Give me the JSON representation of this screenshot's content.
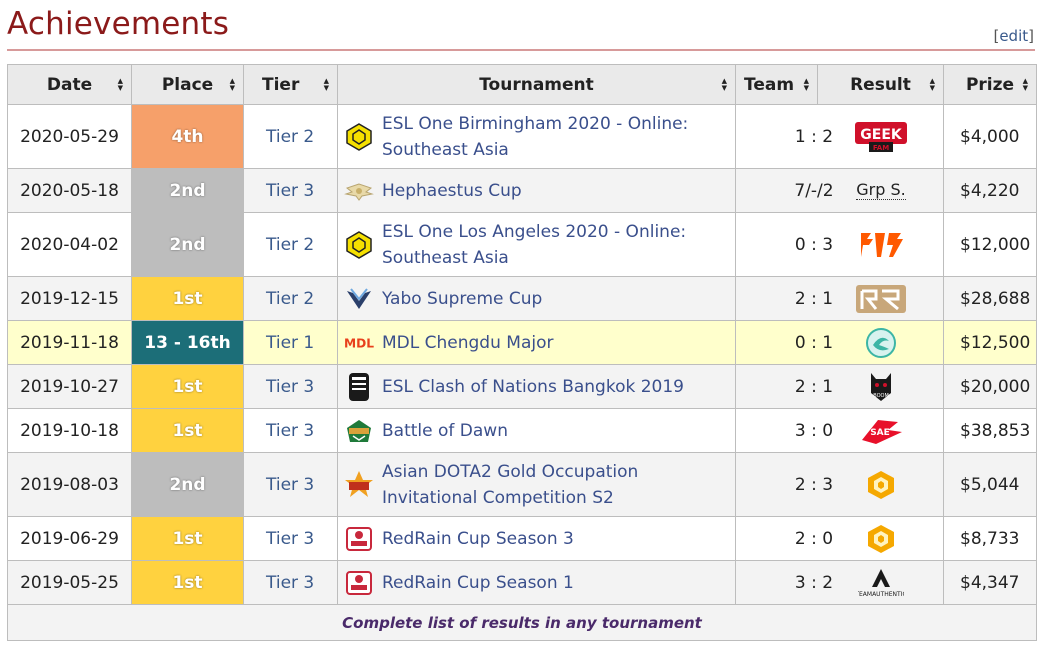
{
  "title": "Achievements",
  "edit_label": "edit",
  "headers": {
    "date": "Date",
    "place": "Place",
    "tier": "Tier",
    "tournament": "Tournament",
    "team": "Team",
    "result": "Result",
    "prize": "Prize"
  },
  "rows": [
    {
      "date": "2020-05-29",
      "place": "4th",
      "place_class": "p4",
      "tier": "Tier 2",
      "tournament": "ESL One Birmingham 2020 - Online: Southeast Asia",
      "t_icon": "esl-hexagon-icon",
      "score": "1 : 2",
      "team_icon": "geek-fam-logo",
      "prize": "$4,000"
    },
    {
      "date": "2020-05-18",
      "place": "2nd",
      "place_class": "p2",
      "tier": "Tier 3",
      "tournament": "Hephaestus Cup",
      "t_icon": "hephaestus-wings-icon",
      "score": "7/-/2",
      "team_text": "Grp S.",
      "prize": "$4,220"
    },
    {
      "date": "2020-04-02",
      "place": "2nd",
      "place_class": "p2",
      "tier": "Tier 2",
      "tournament": "ESL One Los Angeles 2020 - Online: Southeast Asia",
      "t_icon": "esl-hexagon-icon",
      "score": "0 : 3",
      "team_icon": "fnatic-logo",
      "prize": "$12,000"
    },
    {
      "date": "2019-12-15",
      "place": "1st",
      "place_class": "p1",
      "tier": "Tier 2",
      "tournament": "Yabo Supreme Cup",
      "t_icon": "yabo-wings-icon",
      "score": "2 : 1",
      "team_icon": "rng-logo",
      "prize": "$28,688"
    },
    {
      "date": "2019-11-18",
      "place": "13 - 16th",
      "place_class": "p13",
      "tier": "Tier 1",
      "tournament": "MDL Chengdu Major",
      "t_icon": "mdl-icon",
      "score": "0 : 1",
      "team_icon": "team-aster-logo",
      "prize": "$12,500",
      "highlight": true
    },
    {
      "date": "2019-10-27",
      "place": "1st",
      "place_class": "p1",
      "tier": "Tier 3",
      "tournament": "ESL Clash of Nations Bangkok 2019",
      "t_icon": "esl-clash-icon",
      "score": "2 : 1",
      "team_icon": "boom-logo",
      "prize": "$20,000"
    },
    {
      "date": "2019-10-18",
      "place": "1st",
      "place_class": "p1",
      "tier": "Tier 3",
      "tournament": "Battle of Dawn",
      "t_icon": "battle-of-dawn-icon",
      "score": "3 : 0",
      "team_icon": "sae-logo",
      "prize": "$38,853"
    },
    {
      "date": "2019-08-03",
      "place": "2nd",
      "place_class": "p2",
      "tier": "Tier 3",
      "tournament": "Asian DOTA2 Gold Occupation Invitational Competition S2",
      "t_icon": "gold-occupation-icon",
      "score": "2 : 3",
      "team_icon": "gold-hex-logo",
      "prize": "$5,044"
    },
    {
      "date": "2019-06-29",
      "place": "1st",
      "place_class": "p1",
      "tier": "Tier 3",
      "tournament": "RedRain Cup Season 3",
      "t_icon": "redrain-icon",
      "score": "2 : 0",
      "team_icon": "gold-hex-logo",
      "prize": "$8,733"
    },
    {
      "date": "2019-05-25",
      "place": "1st",
      "place_class": "p1",
      "tier": "Tier 3",
      "tournament": "RedRain Cup Season 1",
      "t_icon": "redrain-icon",
      "score": "3 : 2",
      "team_icon": "team-authentic-logo",
      "prize": "$4,347"
    }
  ],
  "footer_link": "Complete list of results in any tournament",
  "colors": {
    "title": "#8b1a1a",
    "link": "#3a5a8c",
    "place_4th": "#f6a06a",
    "place_2nd": "#bdbdbd",
    "place_1st": "#ffd23f",
    "place_13": "#1c6e78",
    "highlight_row": "#ffffcc"
  }
}
